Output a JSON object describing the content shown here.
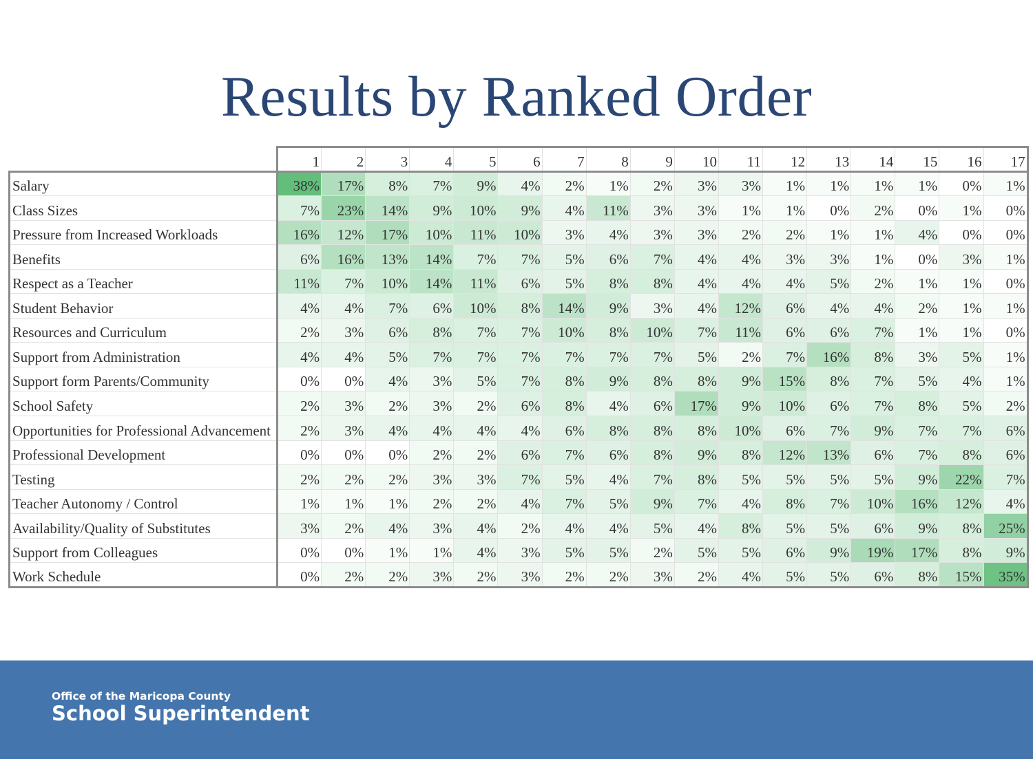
{
  "slide": {
    "title": "Results by Ranked Order"
  },
  "footer": {
    "line1": "Office of the Maricopa County",
    "line2": "School Superintendent",
    "background": "#4476ad"
  },
  "colors": {
    "title": "#2a4674",
    "heat_low": "#ffffff",
    "heat_high": "#63be7b",
    "table_border": "#8c8c8c"
  },
  "chart_data": {
    "type": "heatmap",
    "title": "",
    "columns": [
      "1",
      "2",
      "3",
      "4",
      "5",
      "6",
      "7",
      "8",
      "9",
      "10",
      "11",
      "12",
      "13",
      "14",
      "15",
      "16",
      "17"
    ],
    "rows": [
      {
        "label": "Salary",
        "values": [
          38,
          17,
          8,
          7,
          9,
          4,
          2,
          1,
          2,
          3,
          3,
          1,
          1,
          1,
          1,
          0,
          1
        ]
      },
      {
        "label": "Class Sizes",
        "values": [
          7,
          23,
          14,
          9,
          10,
          9,
          4,
          11,
          3,
          3,
          1,
          1,
          0,
          2,
          0,
          1,
          0
        ]
      },
      {
        "label": "Pressure from Increased Workloads",
        "values": [
          16,
          12,
          17,
          10,
          11,
          10,
          3,
          4,
          3,
          3,
          2,
          2,
          1,
          1,
          4,
          0,
          0
        ]
      },
      {
        "label": "Benefits",
        "values": [
          6,
          16,
          13,
          14,
          7,
          7,
          5,
          6,
          7,
          4,
          4,
          3,
          3,
          1,
          0,
          3,
          1
        ]
      },
      {
        "label": "Respect as a Teacher",
        "values": [
          11,
          7,
          10,
          14,
          11,
          6,
          5,
          8,
          8,
          4,
          4,
          4,
          5,
          2,
          1,
          1,
          0
        ]
      },
      {
        "label": "Student Behavior",
        "values": [
          4,
          4,
          7,
          6,
          10,
          8,
          14,
          9,
          3,
          4,
          12,
          6,
          4,
          4,
          2,
          1,
          1
        ]
      },
      {
        "label": "Resources and Curriculum",
        "values": [
          2,
          3,
          6,
          8,
          7,
          7,
          10,
          8,
          10,
          7,
          11,
          6,
          6,
          7,
          1,
          1,
          0
        ]
      },
      {
        "label": "Support from Administration",
        "values": [
          4,
          4,
          5,
          7,
          7,
          7,
          7,
          7,
          7,
          5,
          2,
          7,
          16,
          8,
          3,
          5,
          1
        ]
      },
      {
        "label": "Support form Parents/Community",
        "values": [
          0,
          0,
          4,
          3,
          5,
          7,
          8,
          9,
          8,
          8,
          9,
          15,
          8,
          7,
          5,
          4,
          1
        ]
      },
      {
        "label": "School Safety",
        "values": [
          2,
          3,
          2,
          3,
          2,
          6,
          8,
          4,
          6,
          17,
          9,
          10,
          6,
          7,
          8,
          5,
          2
        ]
      },
      {
        "label": "Opportunities for Professional Advancement",
        "values": [
          2,
          3,
          4,
          4,
          4,
          4,
          6,
          8,
          8,
          8,
          10,
          6,
          7,
          9,
          7,
          7,
          6
        ]
      },
      {
        "label": "Professional Development",
        "values": [
          0,
          0,
          0,
          2,
          2,
          6,
          7,
          6,
          8,
          9,
          8,
          12,
          13,
          6,
          7,
          8,
          6
        ]
      },
      {
        "label": "Testing",
        "values": [
          2,
          2,
          2,
          3,
          3,
          7,
          5,
          4,
          7,
          8,
          5,
          5,
          5,
          5,
          9,
          22,
          7
        ]
      },
      {
        "label": "Teacher Autonomy / Control",
        "values": [
          1,
          1,
          1,
          2,
          2,
          4,
          7,
          5,
          9,
          7,
          4,
          8,
          7,
          10,
          16,
          12,
          4
        ]
      },
      {
        "label": "Availability/Quality of Substitutes",
        "values": [
          3,
          2,
          4,
          3,
          4,
          2,
          4,
          4,
          5,
          4,
          8,
          5,
          5,
          6,
          9,
          8,
          25
        ]
      },
      {
        "label": "Support from Colleagues",
        "values": [
          0,
          0,
          1,
          1,
          4,
          3,
          5,
          5,
          2,
          5,
          5,
          6,
          9,
          19,
          17,
          8,
          9
        ]
      },
      {
        "label": "Work Schedule",
        "values": [
          0,
          2,
          2,
          3,
          2,
          3,
          2,
          2,
          3,
          2,
          4,
          5,
          5,
          6,
          8,
          15,
          35
        ]
      }
    ],
    "value_suffix": "%",
    "color_scale": [
      "#ffffff",
      "#63be7b"
    ]
  }
}
